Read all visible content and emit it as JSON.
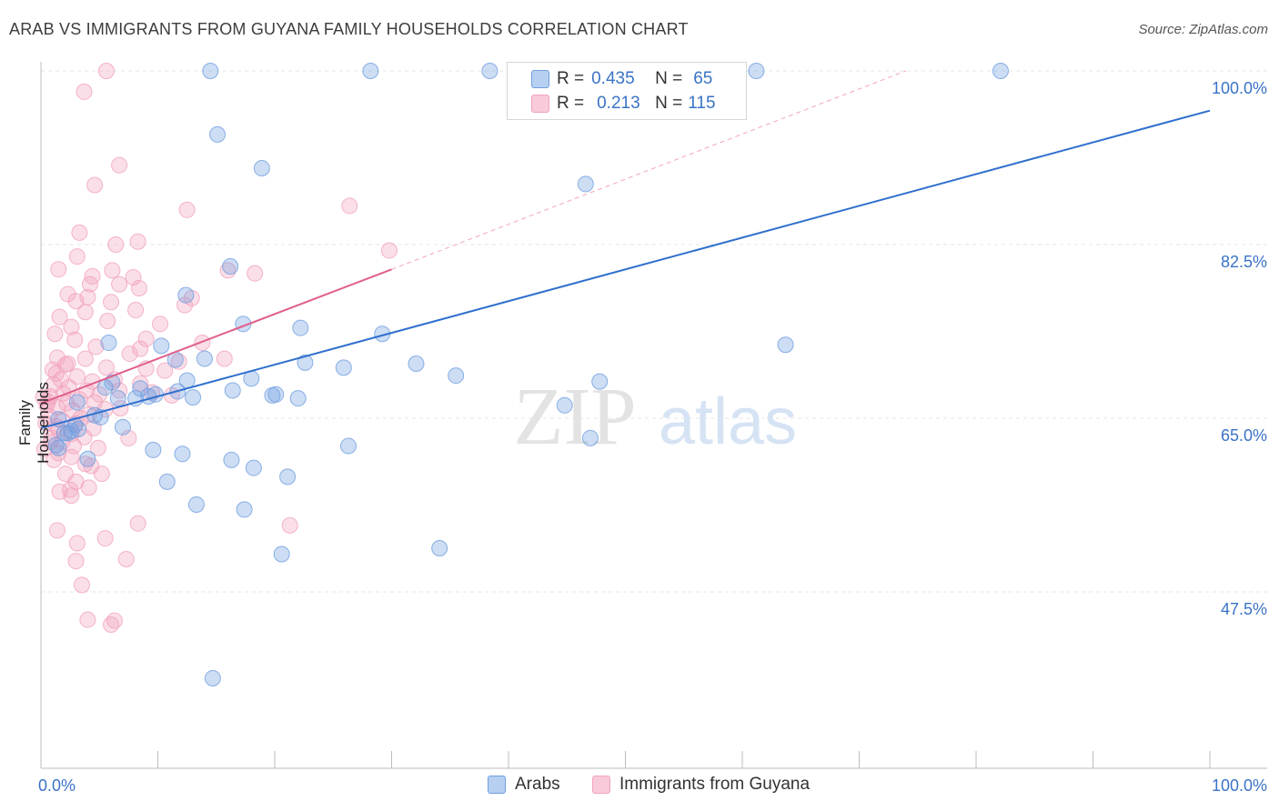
{
  "title": "ARAB VS IMMIGRANTS FROM GUYANA FAMILY HOUSEHOLDS CORRELATION CHART",
  "source": "Source: ZipAtlas.com",
  "watermark": {
    "zip": "ZIP",
    "atlas": "atlas"
  },
  "legend": {
    "r_label": "R =",
    "n_label": "N =",
    "arabs": {
      "r": "0.435",
      "n": "65"
    },
    "guyana": {
      "r": "0.213",
      "n": "115"
    }
  },
  "bottom_legend": {
    "arabs": "Arabs",
    "guyana": "Immigrants from Guyana"
  },
  "chart_data": {
    "type": "scatter",
    "ylabel": "Family Households",
    "xlabel": "",
    "xlim": [
      0,
      100
    ],
    "ylim": [
      32,
      102
    ],
    "x_tick_labels": [
      "0.0%",
      "100.0%"
    ],
    "y_tick_labels": [
      "100.0%",
      "82.5%",
      "65.0%",
      "47.5%"
    ],
    "y_tick_values": [
      100,
      82.5,
      65,
      47.5
    ],
    "grid": "horizontal dashed",
    "colors": {
      "arabs": "#6f9fe0",
      "arabs_line": "#2f6fce",
      "guyana": "#f2a3bd",
      "guyana_line": "#e05f8c",
      "axis_text": "#3a73c7"
    },
    "series": [
      {
        "name": "Arabs",
        "trend": {
          "x0": 0,
          "y0": 64.0,
          "x1": 100,
          "y1": 96.0
        },
        "points": [
          [
            14.5,
            100
          ],
          [
            28.2,
            100
          ],
          [
            38.4,
            100
          ],
          [
            61.2,
            100
          ],
          [
            82.1,
            100
          ],
          [
            15.1,
            93.6
          ],
          [
            18.9,
            90.2
          ],
          [
            46.6,
            88.6
          ],
          [
            16.2,
            80.3
          ],
          [
            12.4,
            77.4
          ],
          [
            17.3,
            74.5
          ],
          [
            22.2,
            74.1
          ],
          [
            29.2,
            73.5
          ],
          [
            5.8,
            72.6
          ],
          [
            10.3,
            72.3
          ],
          [
            14.0,
            71.0
          ],
          [
            11.5,
            70.9
          ],
          [
            22.6,
            70.6
          ],
          [
            25.9,
            70.1
          ],
          [
            32.1,
            70.5
          ],
          [
            63.7,
            72.4
          ],
          [
            35.5,
            69.3
          ],
          [
            18.0,
            69.0
          ],
          [
            47.8,
            68.7
          ],
          [
            6.1,
            68.6
          ],
          [
            9.8,
            67.4
          ],
          [
            12.5,
            68.8
          ],
          [
            8.5,
            68.0
          ],
          [
            5.5,
            68.1
          ],
          [
            16.4,
            67.8
          ],
          [
            11.7,
            67.7
          ],
          [
            20.1,
            67.4
          ],
          [
            13.0,
            67.1
          ],
          [
            19.8,
            67.3
          ],
          [
            22.0,
            67.0
          ],
          [
            8.1,
            67.0
          ],
          [
            9.2,
            67.2
          ],
          [
            6.6,
            67.0
          ],
          [
            3.1,
            66.6
          ],
          [
            44.8,
            66.3
          ],
          [
            5.1,
            65.1
          ],
          [
            4.6,
            65.3
          ],
          [
            3.2,
            63.9
          ],
          [
            2.6,
            63.7
          ],
          [
            1.5,
            64.9
          ],
          [
            2.3,
            63.5
          ],
          [
            1.5,
            62.0
          ],
          [
            1.3,
            62.3
          ],
          [
            4.0,
            60.9
          ],
          [
            47.0,
            63.0
          ],
          [
            26.3,
            62.2
          ],
          [
            9.6,
            61.8
          ],
          [
            12.1,
            61.4
          ],
          [
            16.3,
            60.8
          ],
          [
            18.2,
            60.0
          ],
          [
            21.1,
            59.1
          ],
          [
            10.8,
            58.6
          ],
          [
            13.3,
            56.3
          ],
          [
            17.4,
            55.8
          ],
          [
            34.1,
            51.9
          ],
          [
            20.6,
            51.3
          ],
          [
            14.7,
            38.8
          ],
          [
            2.0,
            63.5
          ],
          [
            2.9,
            64.3
          ],
          [
            7.0,
            64.1
          ]
        ]
      },
      {
        "name": "Immigrants from Guyana",
        "trend": {
          "x0": 0,
          "y0": 66.5,
          "x1": 30,
          "y1": 80.0
        },
        "extension": {
          "x0": 30,
          "y0": 80.0,
          "x1": 74,
          "y1": 100.0
        },
        "points": [
          [
            5.6,
            100
          ],
          [
            3.7,
            97.9
          ],
          [
            6.7,
            90.5
          ],
          [
            4.6,
            88.5
          ],
          [
            26.4,
            86.4
          ],
          [
            6.4,
            82.5
          ],
          [
            8.3,
            82.8
          ],
          [
            3.1,
            81.3
          ],
          [
            3.3,
            83.7
          ],
          [
            29.8,
            81.9
          ],
          [
            4.4,
            79.3
          ],
          [
            1.5,
            80.0
          ],
          [
            6.1,
            79.9
          ],
          [
            7.9,
            79.2
          ],
          [
            16.0,
            79.9
          ],
          [
            18.3,
            79.6
          ],
          [
            4.2,
            78.5
          ],
          [
            6.7,
            78.5
          ],
          [
            2.3,
            77.5
          ],
          [
            3.0,
            76.8
          ],
          [
            4.0,
            77.2
          ],
          [
            8.4,
            78.1
          ],
          [
            12.9,
            77.1
          ],
          [
            6.0,
            76.7
          ],
          [
            8.1,
            75.9
          ],
          [
            1.6,
            75.2
          ],
          [
            3.8,
            75.7
          ],
          [
            2.6,
            74.2
          ],
          [
            5.7,
            74.8
          ],
          [
            12.3,
            76.4
          ],
          [
            1.2,
            73.5
          ],
          [
            2.9,
            72.9
          ],
          [
            4.7,
            72.2
          ],
          [
            8.5,
            72.0
          ],
          [
            13.8,
            72.6
          ],
          [
            1.4,
            71.1
          ],
          [
            2.1,
            70.4
          ],
          [
            3.8,
            71.0
          ],
          [
            5.6,
            70.1
          ],
          [
            7.6,
            71.5
          ],
          [
            9.0,
            70.0
          ],
          [
            11.8,
            70.7
          ],
          [
            1.3,
            69.5
          ],
          [
            3.1,
            69.2
          ],
          [
            4.4,
            68.7
          ],
          [
            6.3,
            68.9
          ],
          [
            8.5,
            68.5
          ],
          [
            1.1,
            68.4
          ],
          [
            2.4,
            68.1
          ],
          [
            3.9,
            67.8
          ],
          [
            5.0,
            67.4
          ],
          [
            6.7,
            67.8
          ],
          [
            0.8,
            67.2
          ],
          [
            1.9,
            67.5
          ],
          [
            3.3,
            66.9
          ],
          [
            4.6,
            66.6
          ],
          [
            0.5,
            66.3
          ],
          [
            1.4,
            66.1
          ],
          [
            2.7,
            65.8
          ],
          [
            4.1,
            65.4
          ],
          [
            5.5,
            65.9
          ],
          [
            0.7,
            65.2
          ],
          [
            1.8,
            64.8
          ],
          [
            3.0,
            64.5
          ],
          [
            4.5,
            64.0
          ],
          [
            0.4,
            64.5
          ],
          [
            1.5,
            63.9
          ],
          [
            2.6,
            63.4
          ],
          [
            3.7,
            63.1
          ],
          [
            0.9,
            63.0
          ],
          [
            1.8,
            62.6
          ],
          [
            2.8,
            62.2
          ],
          [
            4.9,
            62.0
          ],
          [
            1.5,
            61.5
          ],
          [
            2.6,
            61.1
          ],
          [
            3.8,
            60.4
          ],
          [
            4.3,
            60.2
          ],
          [
            1.1,
            60.8
          ],
          [
            2.1,
            59.4
          ],
          [
            3.0,
            58.6
          ],
          [
            4.1,
            58.0
          ],
          [
            1.6,
            57.6
          ],
          [
            2.6,
            57.2
          ],
          [
            1.4,
            53.7
          ],
          [
            3.1,
            52.4
          ],
          [
            5.5,
            52.9
          ],
          [
            8.3,
            54.4
          ],
          [
            21.3,
            54.2
          ],
          [
            3.0,
            50.6
          ],
          [
            7.3,
            50.8
          ],
          [
            3.5,
            48.2
          ],
          [
            4.0,
            44.7
          ],
          [
            6.0,
            44.2
          ],
          [
            6.3,
            44.6
          ],
          [
            12.5,
            86.0
          ],
          [
            9.0,
            73.0
          ],
          [
            10.2,
            74.5
          ],
          [
            10.6,
            69.8
          ],
          [
            7.5,
            63.0
          ],
          [
            15.7,
            71.0
          ],
          [
            9.5,
            67.6
          ],
          [
            11.2,
            67.3
          ],
          [
            6.8,
            66.0
          ],
          [
            0.6,
            66.7
          ],
          [
            1.0,
            69.9
          ],
          [
            0.3,
            61.9
          ],
          [
            2.3,
            70.5
          ],
          [
            3.4,
            65.0
          ],
          [
            0.2,
            67.1
          ],
          [
            2.2,
            66.5
          ],
          [
            1.7,
            68.9
          ],
          [
            1.3,
            64.2
          ],
          [
            0.8,
            62.6
          ],
          [
            5.2,
            59.4
          ],
          [
            2.5,
            57.8
          ]
        ]
      }
    ]
  }
}
